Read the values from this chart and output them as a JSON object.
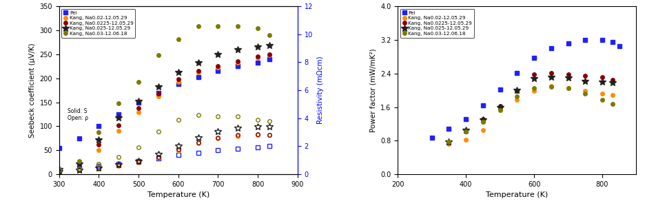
{
  "left_plot": {
    "xlabel": "Temperature (K)",
    "ylabel_left": "Seebeck coefficient (μV/K)",
    "ylabel_right": "Resistivity (mΩcm)",
    "xlim": [
      300,
      900
    ],
    "ylim_left": [
      0,
      350
    ],
    "ylim_right": [
      0,
      12
    ],
    "legend_labels": [
      "Pei",
      "Kang, Na0.02-12.05.29",
      "Kang, Na0.0225-12.05.29",
      "Kang, Na0.025-12.05.29",
      "Kang, Na0.03-12.06.18"
    ],
    "series": {
      "Pei": {
        "S_T": [
          300,
          350,
          400,
          450,
          500,
          550,
          600,
          650,
          700,
          750,
          800,
          830
        ],
        "S_V": [
          55,
          75,
          100,
          125,
          150,
          170,
          188,
          202,
          215,
          225,
          233,
          240
        ],
        "rho_T": [
          300,
          350,
          400,
          450,
          500,
          550,
          600,
          650,
          700,
          750,
          800,
          830
        ],
        "rho_V": [
          0.28,
          0.42,
          0.58,
          0.75,
          0.95,
          1.15,
          1.38,
          1.55,
          1.72,
          1.82,
          1.95,
          2.0
        ]
      },
      "Na0.02": {
        "S_T": [
          300,
          350,
          400,
          450,
          500,
          550,
          600,
          650,
          700,
          750,
          800,
          830
        ],
        "S_V": [
          8,
          18,
          50,
          90,
          130,
          162,
          192,
          212,
          222,
          232,
          242,
          248
        ],
        "rho_T": [
          300,
          350,
          400,
          450,
          500,
          550,
          600,
          650,
          700,
          750,
          800,
          830
        ],
        "rho_V": [
          0.18,
          0.28,
          0.42,
          0.62,
          0.82,
          1.18,
          1.68,
          2.2,
          2.55,
          2.72,
          2.8,
          2.8
        ]
      },
      "Na0.0225": {
        "S_T": [
          300,
          350,
          400,
          450,
          500,
          550,
          600,
          650,
          700,
          750,
          800,
          830
        ],
        "S_V": [
          8,
          18,
          62,
          102,
          138,
          168,
          198,
          216,
          226,
          236,
          246,
          250
        ],
        "rho_T": [
          300,
          350,
          400,
          450,
          500,
          550,
          600,
          650,
          700,
          750,
          800,
          830
        ],
        "rho_V": [
          0.18,
          0.28,
          0.44,
          0.65,
          0.88,
          1.26,
          1.8,
          2.28,
          2.62,
          2.8,
          2.86,
          2.8
        ]
      },
      "Na0.025": {
        "S_T": [
          300,
          350,
          400,
          450,
          500,
          550,
          600,
          650,
          700,
          750,
          800,
          830
        ],
        "S_V": [
          10,
          22,
          72,
          118,
          152,
          183,
          212,
          232,
          250,
          260,
          266,
          268
        ],
        "rho_T": [
          300,
          350,
          400,
          450,
          500,
          550,
          600,
          650,
          700,
          750,
          800,
          830
        ],
        "rho_V": [
          0.18,
          0.28,
          0.44,
          0.68,
          0.95,
          1.42,
          2.02,
          2.6,
          3.05,
          3.28,
          3.4,
          3.38
        ]
      },
      "Na0.03": {
        "S_T": [
          300,
          350,
          400,
          450,
          500,
          550,
          600,
          650,
          700,
          750,
          800,
          830
        ],
        "S_V": [
          10,
          28,
          88,
          148,
          192,
          248,
          282,
          308,
          308,
          308,
          305,
          290
        ],
        "rho_T": [
          300,
          350,
          400,
          450,
          500,
          550,
          600,
          650,
          700,
          750,
          800,
          830
        ],
        "rho_V": [
          0.28,
          0.42,
          0.75,
          1.22,
          1.95,
          3.05,
          3.88,
          4.22,
          4.12,
          4.12,
          3.88,
          3.8
        ]
      }
    }
  },
  "right_plot": {
    "xlabel": "Temperature (K)",
    "ylabel": "Power factor (mW/mK²)",
    "xlim": [
      200,
      900
    ],
    "ylim": [
      0,
      4.0
    ],
    "legend_labels": [
      "Pei",
      "Kang, Na0.02-12.05.29",
      "Kang, Na0.0225-12.05.29",
      "Kang, Na0.025-12.05.29",
      "Kang, Na0.03-12.06.18"
    ],
    "series": {
      "Pei": {
        "T": [
          300,
          350,
          400,
          450,
          500,
          550,
          600,
          650,
          700,
          750,
          800,
          830,
          850
        ],
        "V": [
          0.87,
          1.08,
          1.32,
          1.65,
          2.02,
          2.42,
          2.78,
          3.0,
          3.12,
          3.2,
          3.2,
          3.15,
          3.05
        ]
      },
      "Na0.02": {
        "T": [
          350,
          400,
          450,
          500,
          550,
          600,
          650,
          700,
          750,
          800,
          830
        ],
        "V": [
          0.72,
          0.82,
          1.05,
          1.55,
          1.78,
          1.98,
          2.1,
          2.05,
          1.98,
          1.92,
          1.88
        ]
      },
      "Na0.0225": {
        "T": [
          350,
          400,
          450,
          500,
          550,
          600,
          650,
          700,
          750,
          800,
          830
        ],
        "V": [
          0.75,
          1.02,
          1.32,
          1.62,
          1.98,
          2.38,
          2.42,
          2.38,
          2.35,
          2.32,
          2.25
        ]
      },
      "Na0.025": {
        "T": [
          350,
          400,
          450,
          500,
          550,
          600,
          650,
          700,
          750,
          800,
          830
        ],
        "V": [
          0.78,
          1.05,
          1.3,
          1.6,
          2.0,
          2.28,
          2.32,
          2.3,
          2.22,
          2.2,
          2.18
        ]
      },
      "Na0.03": {
        "T": [
          350,
          400,
          450,
          500,
          550,
          600,
          650,
          700,
          750,
          800,
          830
        ],
        "V": [
          0.78,
          1.02,
          1.25,
          1.52,
          1.85,
          2.05,
          2.08,
          2.05,
          1.92,
          1.78,
          1.68
        ]
      }
    }
  },
  "colors": {
    "Pei": "#2020ff",
    "Na0.02": "#ff8c00",
    "Na0.0225": "#8b0000",
    "Na0.025": "#202020",
    "Na0.03": "#7b7b00"
  },
  "markers_S": [
    "s",
    "o",
    "o",
    "*",
    "o"
  ],
  "markers_rho": [
    "s",
    "o",
    "o",
    "*",
    "o"
  ],
  "key_list": [
    "Pei",
    "Na0.02",
    "Na0.0225",
    "Na0.025",
    "Na0.03"
  ]
}
